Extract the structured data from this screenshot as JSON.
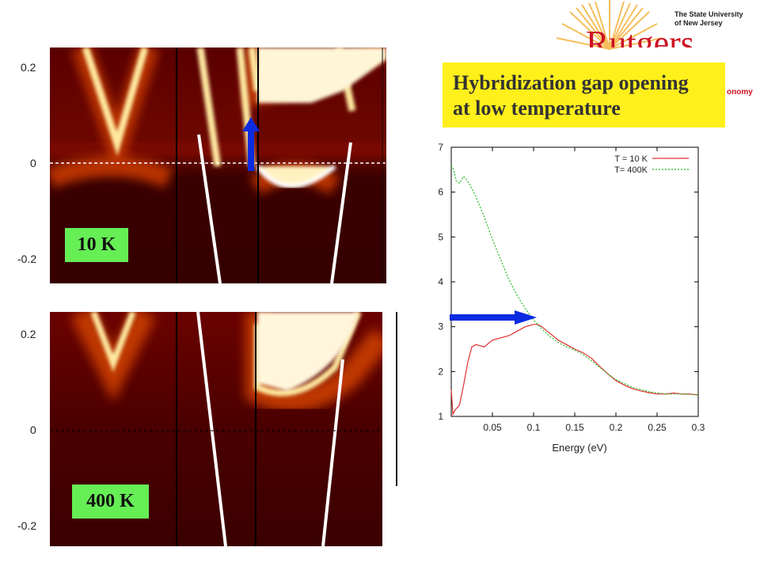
{
  "logo": {
    "university_line1": "The State University",
    "university_line2": "of New Jersey",
    "wordmark": "Rutgers",
    "department_fragment": "onomy"
  },
  "title_box": {
    "line1": "Hybridization gap opening",
    "line2": "at low temperature"
  },
  "panels": [
    {
      "label": "10 K",
      "y_ticks": [
        "0.2",
        "0",
        "-0.2"
      ]
    },
    {
      "label": "400 K",
      "y_ticks": [
        "0.2",
        "0",
        "-0.2"
      ]
    }
  ],
  "colors": {
    "arrow": "#0a2be0",
    "label_bg": "#66ee55",
    "title_bg": "#ffef1a",
    "series_10K": "#e03030",
    "series_400K": "#22bb22"
  },
  "chart_data": {
    "type": "line",
    "xlabel": "Energy (eV)",
    "ylabel": "",
    "xlim": [
      0,
      0.3
    ],
    "ylim": [
      1,
      7
    ],
    "x_ticks": [
      "0.05",
      "0.1",
      "0.15",
      "0.2",
      "0.25",
      "0.3"
    ],
    "y_ticks": [
      "1",
      "2",
      "3",
      "4",
      "5",
      "6",
      "7"
    ],
    "legend_position": "top-right",
    "series": [
      {
        "name": "T = 10 K",
        "color": "#e03030",
        "dash": "solid",
        "x": [
          0.0,
          0.002,
          0.005,
          0.01,
          0.015,
          0.02,
          0.025,
          0.03,
          0.04,
          0.05,
          0.06,
          0.07,
          0.08,
          0.09,
          0.1,
          0.105,
          0.11,
          0.12,
          0.13,
          0.14,
          0.15,
          0.16,
          0.17,
          0.18,
          0.19,
          0.2,
          0.21,
          0.22,
          0.23,
          0.24,
          0.25,
          0.26,
          0.27,
          0.28,
          0.29,
          0.3
        ],
        "y": [
          1.6,
          1.05,
          1.15,
          1.25,
          1.7,
          2.2,
          2.55,
          2.6,
          2.55,
          2.7,
          2.75,
          2.8,
          2.9,
          3.0,
          3.05,
          3.05,
          3.0,
          2.85,
          2.7,
          2.6,
          2.5,
          2.42,
          2.3,
          2.12,
          1.95,
          1.8,
          1.7,
          1.62,
          1.57,
          1.53,
          1.5,
          1.5,
          1.52,
          1.5,
          1.5,
          1.48
        ]
      },
      {
        "name": "T= 400K",
        "color": "#22bb22",
        "dash": "dotted",
        "x": [
          0.0,
          0.003,
          0.006,
          0.01,
          0.015,
          0.02,
          0.03,
          0.04,
          0.05,
          0.06,
          0.07,
          0.08,
          0.09,
          0.1,
          0.11,
          0.12,
          0.13,
          0.14,
          0.15,
          0.16,
          0.17,
          0.18,
          0.19,
          0.2,
          0.22,
          0.24,
          0.26,
          0.28,
          0.3
        ],
        "y": [
          6.6,
          6.5,
          6.25,
          6.2,
          6.35,
          6.25,
          5.9,
          5.45,
          4.95,
          4.5,
          4.05,
          3.7,
          3.4,
          3.15,
          2.95,
          2.78,
          2.65,
          2.55,
          2.48,
          2.38,
          2.25,
          2.1,
          1.95,
          1.82,
          1.65,
          1.55,
          1.5,
          1.5,
          1.48
        ]
      }
    ]
  }
}
